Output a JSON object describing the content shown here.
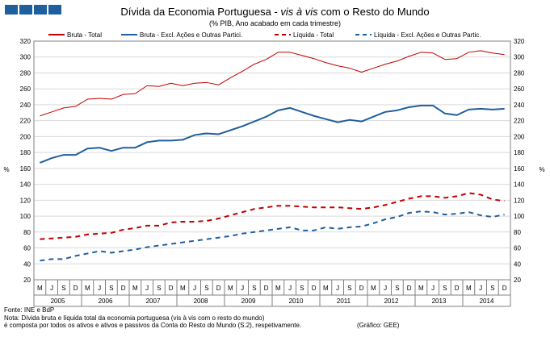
{
  "header": {
    "title_plain": "Dívida da Economia Portuguesa - ",
    "title_italic": "vis à vis",
    "title_rest": " com o Resto do Mundo",
    "subtitle": "(% PIB, Ano acabado em cada trimestre)"
  },
  "footer": {
    "source": "Fonte:  INE e BdP",
    "note1": "Nota: Dívida  bruta e líquida total da economia portuguesa  (vis à vis com o resto do mundo)",
    "note2": "é composta por todos os ativos e ativos e passivos da Conta do Resto do Mundo (S.2), respetivamente.",
    "credit": "(Gráfico: GEE)"
  },
  "colors": {
    "red": "#c00000",
    "blue": "#1f5f9e"
  },
  "chart_data": {
    "type": "line",
    "title": "Dívida da Economia Portuguesa - vis à vis com o Resto do Mundo",
    "subtitle": "(% PIB, Ano acabado em cada trimestre)",
    "ylabel": "%",
    "ylabel_right": "%",
    "ylim": [
      20,
      320
    ],
    "yticks": [
      20,
      40,
      60,
      80,
      100,
      120,
      140,
      160,
      180,
      200,
      220,
      240,
      260,
      280,
      300,
      320
    ],
    "grid": true,
    "legend_position": "top",
    "quarter_labels": [
      "M",
      "J",
      "S",
      "D",
      "M",
      "J",
      "S",
      "D",
      "M",
      "J",
      "S",
      "D",
      "M",
      "J",
      "S",
      "D",
      "M",
      "J",
      "S",
      "D",
      "M",
      "J",
      "S",
      "D",
      "M",
      "J",
      "S",
      "D",
      "M",
      "J",
      "S",
      "D",
      "M",
      "J",
      "S",
      "D",
      "M",
      "J",
      "S",
      "D"
    ],
    "years": [
      "2005",
      "2006",
      "2007",
      "2008",
      "2009",
      "2010",
      "2011",
      "2012",
      "2013",
      "2014"
    ],
    "series": [
      {
        "name": "Bruta - Total",
        "color": "#c00000",
        "style": "solid",
        "values": [
          226,
          231,
          236,
          238,
          247,
          248,
          247,
          253,
          254,
          264,
          263,
          267,
          264,
          267,
          268,
          265,
          274,
          282,
          291,
          297,
          306,
          306,
          302,
          298,
          293,
          289,
          286,
          281,
          286,
          291,
          295,
          301,
          306,
          305,
          297,
          298,
          306,
          308,
          305,
          303
        ]
      },
      {
        "name": "Bruta - Excl. Ações e Outras Partici.",
        "color": "#1f5f9e",
        "style": "solid",
        "values": [
          167,
          173,
          177,
          177,
          185,
          186,
          182,
          186,
          186,
          193,
          195,
          195,
          196,
          202,
          204,
          203,
          208,
          213,
          219,
          225,
          233,
          236,
          231,
          226,
          222,
          218,
          221,
          219,
          225,
          231,
          233,
          237,
          239,
          239,
          229,
          227,
          234,
          235,
          234,
          235
        ]
      },
      {
        "name": "Líquida - Total",
        "color": "#c00000",
        "style": "dashed",
        "values": [
          71,
          72,
          73,
          74,
          77,
          78,
          79,
          83,
          85,
          88,
          88,
          92,
          93,
          93,
          94,
          97,
          101,
          105,
          109,
          111,
          113,
          113,
          112,
          111,
          111,
          111,
          110,
          109,
          111,
          114,
          118,
          122,
          125,
          125,
          123,
          125,
          129,
          127,
          121,
          119
        ]
      },
      {
        "name": "Líquida - Excl. Ações e Outras Partic.",
        "color": "#1f5f9e",
        "style": "dashed",
        "values": [
          44,
          46,
          46,
          50,
          53,
          56,
          54,
          56,
          58,
          61,
          63,
          65,
          67,
          69,
          71,
          73,
          75,
          78,
          80,
          82,
          84,
          86,
          82,
          82,
          86,
          84,
          86,
          87,
          91,
          96,
          99,
          104,
          106,
          105,
          102,
          103,
          105,
          101,
          99,
          102
        ]
      }
    ]
  }
}
